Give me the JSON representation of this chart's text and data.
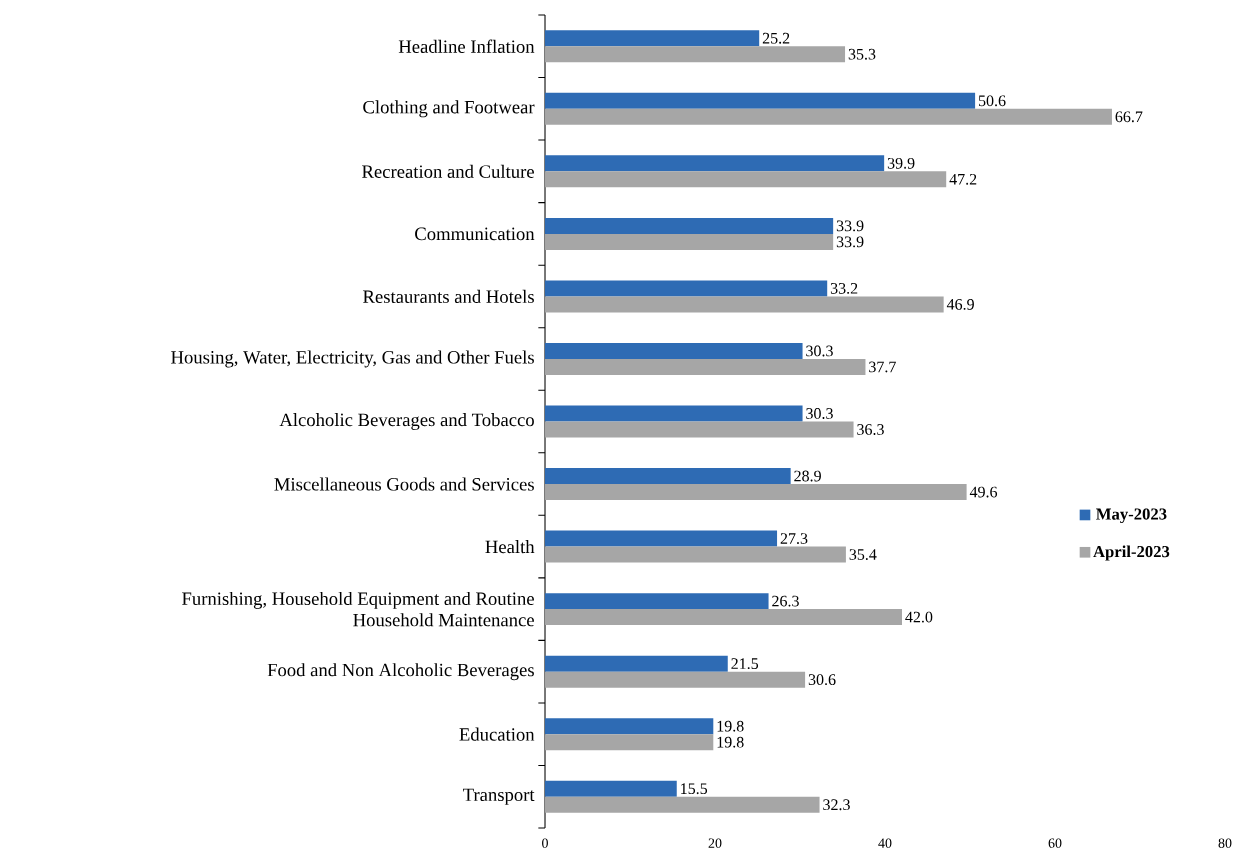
{
  "chart_data": {
    "type": "bar",
    "orientation": "horizontal",
    "categories": [
      "Headline Inflation",
      "Clothing and Footwear",
      "Recreation and Culture",
      "Communication",
      "Restaurants and Hotels",
      "Housing, Water, Electricity, Gas and Other Fuels",
      "Alcoholic Beverages and Tobacco",
      "Miscellaneous Goods and Services",
      "Health",
      "Furnishing, Household Equipment and Routine Household Maintenance",
      "Food and Non Alcoholic Beverages",
      "Education",
      "Transport"
    ],
    "series": [
      {
        "name": "May-2023",
        "color": "#2e6bb4",
        "values": [
          25.2,
          50.6,
          39.9,
          33.9,
          33.2,
          30.3,
          30.3,
          28.9,
          27.3,
          26.3,
          21.5,
          19.8,
          15.5
        ],
        "value_labels": [
          "25.2",
          "50.6",
          "39.9",
          "33.9",
          "33.2",
          "30.3",
          "30.3",
          "28.9",
          "27.3",
          "26.3",
          "21.5",
          "19.8",
          "15.5"
        ]
      },
      {
        "name": "April-2023",
        "color": "#a6a6a6",
        "values": [
          35.3,
          66.7,
          47.2,
          33.9,
          46.9,
          37.7,
          36.3,
          49.6,
          35.4,
          42.0,
          30.6,
          19.8,
          32.3
        ],
        "value_labels": [
          "35.3",
          "66.7",
          "47.2",
          "33.9",
          "46.9",
          "37.7",
          "36.3",
          "49.6",
          "35.4",
          "42.0",
          "30.6",
          "19.8",
          "32.3"
        ]
      }
    ],
    "xlim": [
      0,
      80
    ],
    "xticks": [
      0,
      20,
      40,
      60,
      80
    ],
    "legend": "right",
    "grid": false
  }
}
